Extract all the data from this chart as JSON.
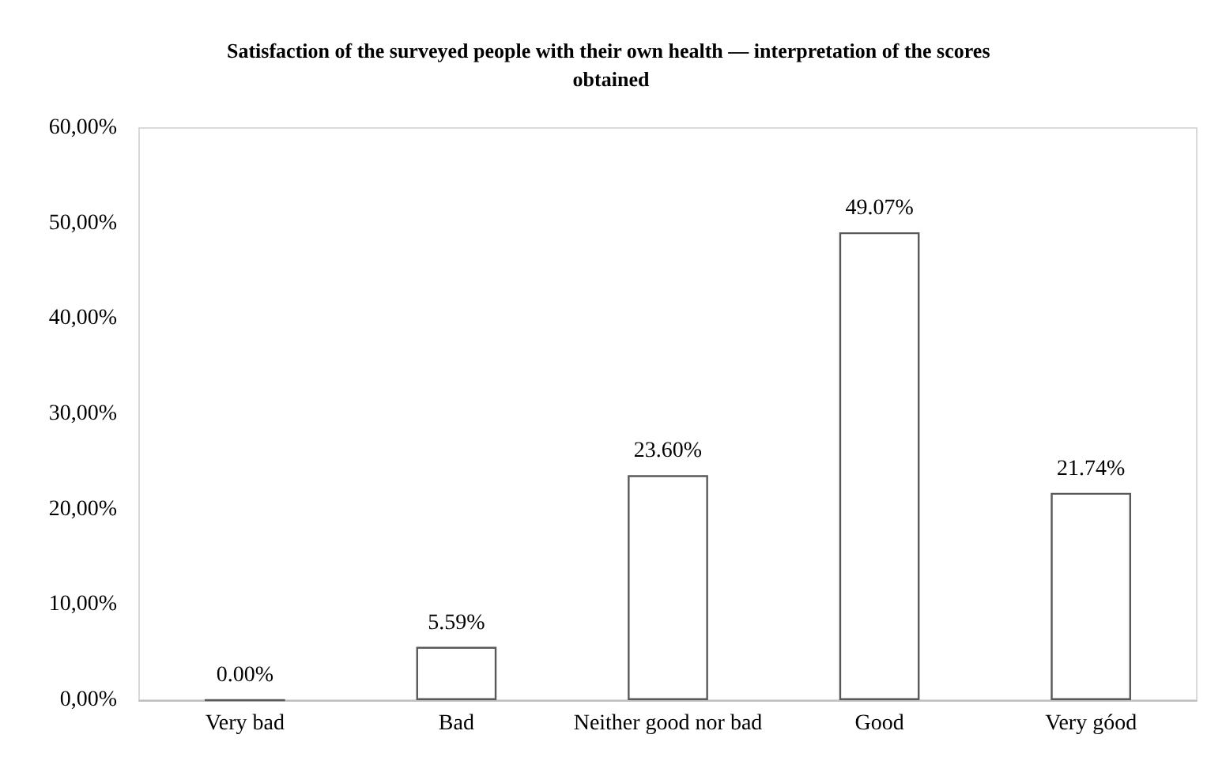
{
  "chart_data": {
    "type": "bar",
    "title": "Satisfaction of the surveyed people with their own health — interpretation of the scores obtained",
    "categories": [
      "Very bad",
      "Bad",
      "Neither good nor bad",
      "Good",
      "Very góod"
    ],
    "values": [
      0.0,
      5.59,
      23.6,
      49.07,
      21.74
    ],
    "value_labels": [
      "0.00%",
      "5.59%",
      "23.60%",
      "49.07%",
      "21.74%"
    ],
    "color": "#595959",
    "ylim": [
      0,
      60
    ],
    "yticks": [
      {
        "value": 0,
        "label": "0,00%"
      },
      {
        "value": 10,
        "label": "10,00%"
      },
      {
        "value": 20,
        "label": "20,00%"
      },
      {
        "value": 30,
        "label": "30,00%"
      },
      {
        "value": 40,
        "label": "40,00%"
      },
      {
        "value": 50,
        "label": "50,00%"
      },
      {
        "value": 60,
        "label": "60,00%"
      }
    ],
    "grid": false
  }
}
